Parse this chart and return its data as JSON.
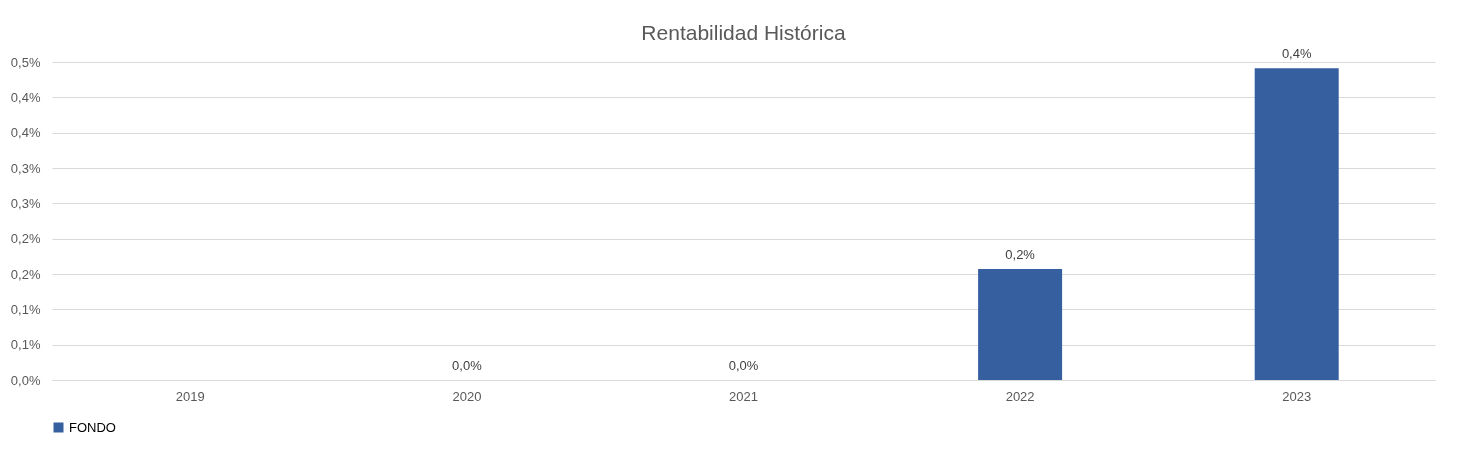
{
  "chart_data": {
    "type": "bar",
    "title": "Rentabilidad Histórica",
    "categories": [
      "2019",
      "2020",
      "2021",
      "2022",
      "2023"
    ],
    "series": [
      {
        "name": "FONDO",
        "color": "#365f9f",
        "values": [
          null,
          0,
          0,
          0.157,
          0.441
        ],
        "value_labels": [
          null,
          "0,0%",
          "0,0%",
          "0,2%",
          "0,4%"
        ]
      }
    ],
    "ylim": [
      0,
      0.45
    ],
    "yticks": [
      {
        "value": 0,
        "label": "0,0%"
      },
      {
        "value": 0.05,
        "label": "0,1%"
      },
      {
        "value": 0.1,
        "label": "0,1%"
      },
      {
        "value": 0.15,
        "label": "0,2%"
      },
      {
        "value": 0.2,
        "label": "0,2%"
      },
      {
        "value": 0.25,
        "label": "0,3%"
      },
      {
        "value": 0.3,
        "label": "0,3%"
      },
      {
        "value": 0.35,
        "label": "0,4%"
      },
      {
        "value": 0.4,
        "label": "0,4%"
      },
      {
        "value": 0.45,
        "label": "0,5%"
      }
    ],
    "grid": "y",
    "legend": "bottom"
  }
}
